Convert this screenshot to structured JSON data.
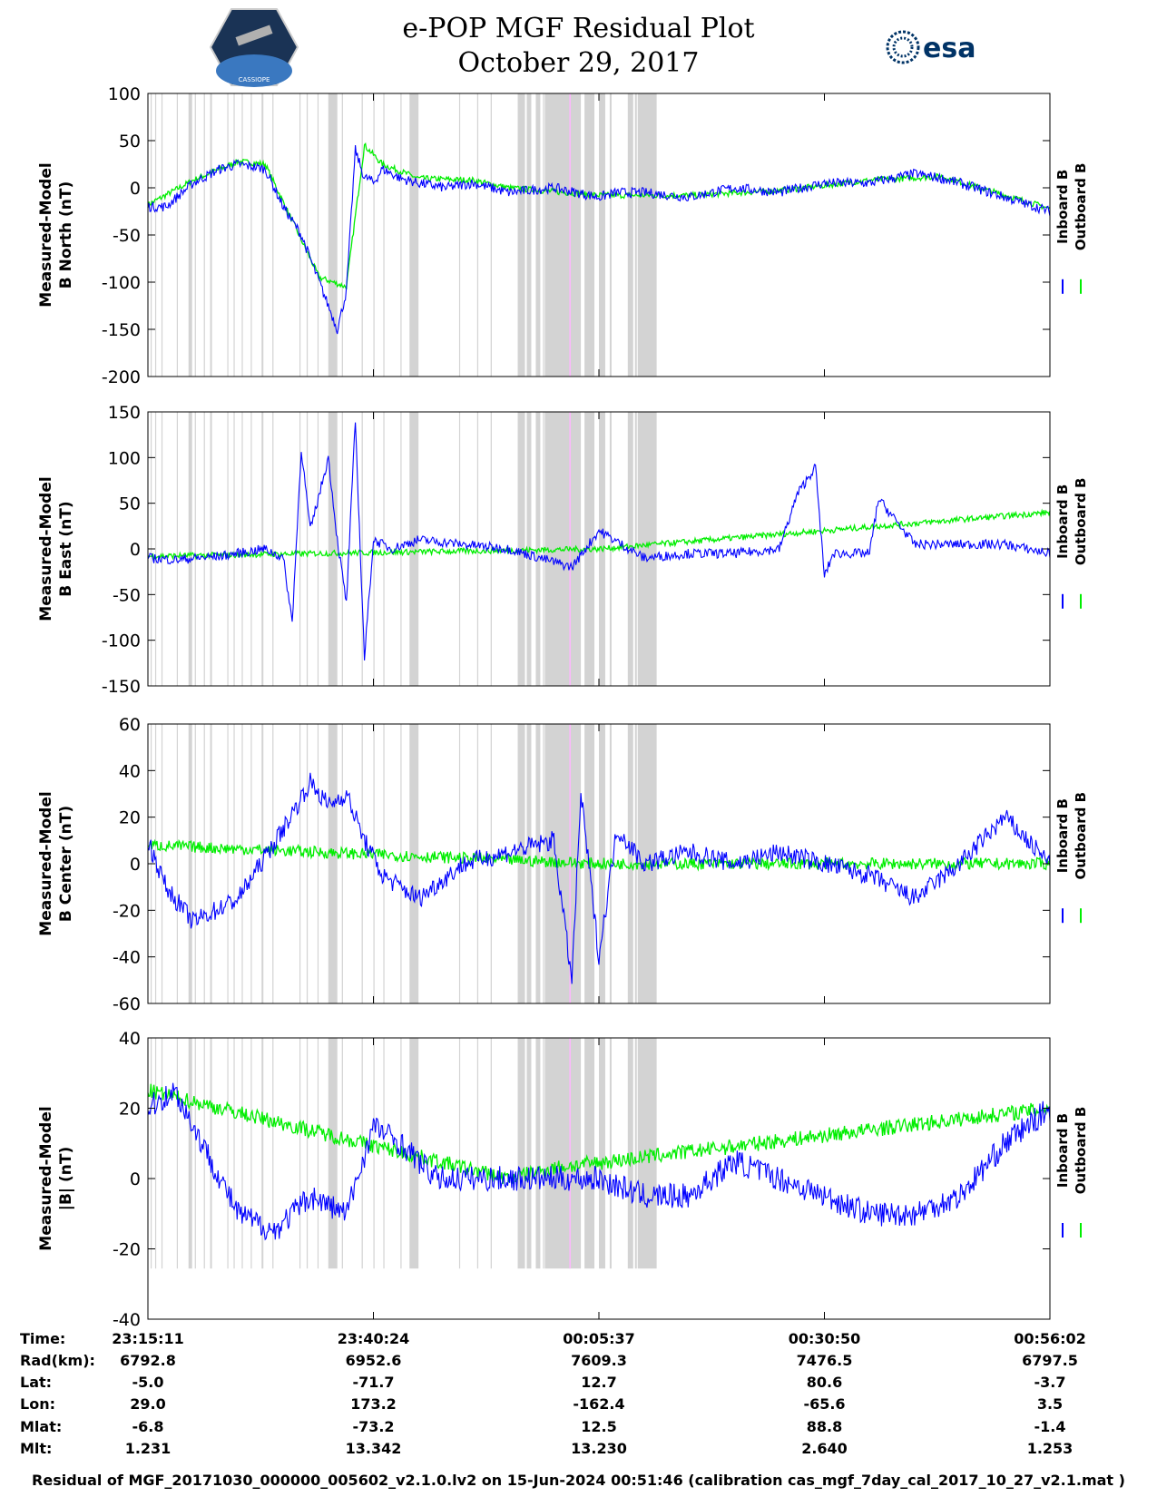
{
  "header": {
    "title_line1": "e-POP MGF Residual Plot",
    "title_line2": "October 29, 2017",
    "left_logo_text": "CASSIOPE",
    "right_logo_text": "esa"
  },
  "legend": {
    "series1": "Inboard B",
    "series2": "Outboard B",
    "color1": "#0000ff",
    "color2": "#00ee00"
  },
  "colors": {
    "gap_band": "#d3d3d3",
    "inboard": "#0000ff",
    "outboard": "#00ee00",
    "marker": "#ffb6ff"
  },
  "chart_data": [
    {
      "type": "line",
      "ylabel_line1": "Measured-Model",
      "ylabel_line2": "B North (nT)",
      "ylim": [
        -200,
        100
      ],
      "yticks": [
        100,
        50,
        0,
        -50,
        -100,
        -150,
        -200
      ],
      "series": [
        {
          "name": "Inboard B",
          "x": [
            0,
            0.02,
            0.05,
            0.08,
            0.1,
            0.13,
            0.15,
            0.17,
            0.19,
            0.21,
            0.22,
            0.23,
            0.24,
            0.245,
            0.25,
            0.26,
            0.28,
            0.3,
            0.33,
            0.36,
            0.4,
            0.45,
            0.5,
            0.52,
            0.55,
            0.6,
            0.65,
            0.7,
            0.75,
            0.8,
            0.85,
            0.88,
            0.9,
            0.95,
            1.0
          ],
          "y": [
            -20,
            -20,
            5,
            20,
            25,
            20,
            -20,
            -50,
            -100,
            -150,
            -110,
            40,
            10,
            10,
            5,
            20,
            10,
            5,
            0,
            5,
            -5,
            0,
            -10,
            -5,
            -5,
            -10,
            0,
            -5,
            5,
            5,
            15,
            10,
            5,
            -10,
            -25
          ]
        },
        {
          "name": "Outboard B",
          "x": [
            0,
            0.05,
            0.1,
            0.13,
            0.15,
            0.19,
            0.22,
            0.24,
            0.26,
            0.3,
            0.36,
            0.4,
            0.5,
            0.6,
            0.7,
            0.8,
            0.88,
            1.0
          ],
          "y": [
            -18,
            8,
            28,
            25,
            -15,
            -95,
            -105,
            45,
            25,
            10,
            8,
            0,
            -8,
            -8,
            -3,
            8,
            12,
            -22
          ]
        }
      ]
    },
    {
      "type": "line",
      "ylabel_line1": "Measured-Model",
      "ylabel_line2": "B East (nT)",
      "ylim": [
        -150,
        150
      ],
      "yticks": [
        150,
        100,
        50,
        0,
        -50,
        -100,
        -150
      ],
      "series": [
        {
          "name": "Inboard B",
          "x": [
            0,
            0.03,
            0.08,
            0.13,
            0.15,
            0.16,
            0.17,
            0.18,
            0.2,
            0.21,
            0.22,
            0.23,
            0.24,
            0.25,
            0.27,
            0.3,
            0.35,
            0.4,
            0.47,
            0.5,
            0.55,
            0.6,
            0.65,
            0.7,
            0.72,
            0.74,
            0.75,
            0.76,
            0.8,
            0.81,
            0.85,
            0.9,
            0.95,
            1.0
          ],
          "y": [
            -10,
            -12,
            -8,
            0,
            -10,
            -80,
            110,
            20,
            100,
            10,
            -60,
            140,
            -120,
            10,
            0,
            10,
            5,
            0,
            -20,
            20,
            -10,
            -5,
            -5,
            0,
            60,
            90,
            -30,
            -5,
            -5,
            55,
            5,
            5,
            5,
            -5
          ]
        },
        {
          "name": "Outboard B",
          "x": [
            0,
            0.5,
            1.0
          ],
          "y": [
            -8,
            0,
            40
          ]
        }
      ]
    },
    {
      "type": "line",
      "ylabel_line1": "Measured-Model",
      "ylabel_line2": "B Center (nT)",
      "ylim": [
        -60,
        60
      ],
      "yticks": [
        60,
        40,
        20,
        0,
        -20,
        -40,
        -60
      ],
      "series": [
        {
          "name": "Inboard B",
          "x": [
            0,
            0.02,
            0.05,
            0.1,
            0.15,
            0.18,
            0.2,
            0.22,
            0.24,
            0.26,
            0.3,
            0.35,
            0.4,
            0.45,
            0.47,
            0.48,
            0.5,
            0.52,
            0.55,
            0.6,
            0.65,
            0.7,
            0.75,
            0.8,
            0.85,
            0.9,
            0.95,
            1.0
          ],
          "y": [
            10,
            -10,
            -25,
            -15,
            15,
            35,
            25,
            30,
            10,
            -5,
            -15,
            0,
            5,
            10,
            -50,
            30,
            -40,
            15,
            0,
            5,
            0,
            5,
            0,
            -5,
            -15,
            0,
            20,
            0
          ]
        },
        {
          "name": "Outboard B",
          "x": [
            0,
            0.5,
            1.0
          ],
          "y": [
            8,
            0,
            0
          ]
        }
      ]
    },
    {
      "type": "line",
      "ylabel_line1": "Measured-Model",
      "ylabel_line2": "|B| (nT)",
      "ylim": [
        -40,
        40
      ],
      "yticks": [
        40,
        20,
        0,
        -20,
        -40
      ],
      "series": [
        {
          "name": "Inboard B",
          "x": [
            0,
            0.03,
            0.06,
            0.1,
            0.14,
            0.18,
            0.22,
            0.25,
            0.28,
            0.32,
            0.4,
            0.5,
            0.55,
            0.6,
            0.65,
            0.7,
            0.75,
            0.8,
            0.85,
            0.9,
            0.95,
            1.0
          ],
          "y": [
            20,
            25,
            10,
            -10,
            -15,
            -5,
            -10,
            15,
            10,
            0,
            0,
            0,
            -5,
            -5,
            5,
            0,
            -5,
            -10,
            -10,
            -5,
            10,
            20
          ]
        },
        {
          "name": "Outboard B",
          "x": [
            0,
            0.4,
            0.45,
            1.0
          ],
          "y": [
            25,
            0,
            3,
            20
          ]
        }
      ]
    }
  ],
  "gap_bands": [
    [
      0.003,
      0.004
    ],
    [
      0.008,
      0.009
    ],
    [
      0.015,
      0.016
    ],
    [
      0.032,
      0.033
    ],
    [
      0.045,
      0.049
    ],
    [
      0.052,
      0.053
    ],
    [
      0.062,
      0.063
    ],
    [
      0.069,
      0.071
    ],
    [
      0.088,
      0.089
    ],
    [
      0.095,
      0.096
    ],
    [
      0.104,
      0.105
    ],
    [
      0.114,
      0.115
    ],
    [
      0.126,
      0.128
    ],
    [
      0.138,
      0.139
    ],
    [
      0.168,
      0.169
    ],
    [
      0.176,
      0.177
    ],
    [
      0.188,
      0.189
    ],
    [
      0.2,
      0.21
    ],
    [
      0.215,
      0.216
    ],
    [
      0.237,
      0.238
    ],
    [
      0.25,
      0.251
    ],
    [
      0.261,
      0.262
    ],
    [
      0.28,
      0.281
    ],
    [
      0.29,
      0.3
    ],
    [
      0.345,
      0.346
    ],
    [
      0.365,
      0.366
    ],
    [
      0.38,
      0.381
    ],
    [
      0.41,
      0.418
    ],
    [
      0.42,
      0.425
    ],
    [
      0.43,
      0.435
    ],
    [
      0.438,
      0.438
    ],
    [
      0.44,
      0.48
    ],
    [
      0.484,
      0.495
    ],
    [
      0.5,
      0.507
    ],
    [
      0.512,
      0.514
    ],
    [
      0.532,
      0.538
    ],
    [
      0.54,
      0.542
    ],
    [
      0.543,
      0.564
    ]
  ],
  "marker_lines": [
    0.468
  ],
  "xaxis": {
    "ticks": [
      0,
      0.25,
      0.5,
      0.75,
      1.0
    ],
    "row_labels": [
      "Time:",
      "Rad(km):",
      "Lat:",
      "Lon:",
      "Mlat:",
      "Mlt:"
    ],
    "columns": [
      [
        "23:15:11",
        "6792.8",
        "-5.0",
        "29.0",
        "-6.8",
        "1.231"
      ],
      [
        "23:40:24",
        "6952.6",
        "-71.7",
        "173.2",
        "-73.2",
        "13.342"
      ],
      [
        "00:05:37",
        "7609.3",
        "12.7",
        "-162.4",
        "12.5",
        "13.230"
      ],
      [
        "00:30:50",
        "7476.5",
        "80.6",
        "-65.6",
        "88.8",
        "2.640"
      ],
      [
        "00:56:02",
        "6797.5",
        "-3.7",
        "3.5",
        "-1.4",
        "1.253"
      ]
    ]
  },
  "footer": "Residual of MGF_20171030_000000_005602_v2.1.0.lv2 on 15-Jun-2024 00:51:46 (calibration cas_mgf_7day_cal_2017_10_27_v2.1.mat )"
}
